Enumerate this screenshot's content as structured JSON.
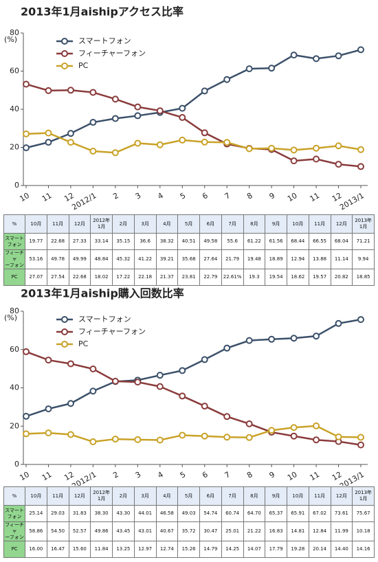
{
  "chart_data": [
    {
      "type": "line",
      "title": "2013年1月aishipアクセス比率",
      "y_label": "(%)",
      "categories": [
        "10",
        "11",
        "12",
        "2012/1",
        "2",
        "3",
        "4",
        "5",
        "6",
        "7",
        "8",
        "9",
        "10",
        "11",
        "12",
        "2013/1"
      ],
      "ylim": [
        0,
        80
      ],
      "yticks": [
        0,
        20,
        40,
        60,
        80
      ],
      "series": [
        {
          "name": "スマートフォン",
          "color": "#3b5069",
          "values": [
            19.77,
            22.68,
            27.33,
            33.14,
            35.15,
            36.6,
            38.32,
            40.51,
            49.58,
            55.6,
            61.22,
            61.56,
            68.44,
            66.55,
            68.04,
            71.21
          ]
        },
        {
          "name": "フィーチャーフォン",
          "color": "#8a3b3b",
          "values": [
            53.16,
            49.78,
            49.99,
            48.84,
            45.32,
            41.22,
            39.21,
            35.68,
            27.64,
            21.79,
            19.48,
            18.89,
            12.94,
            13.88,
            11.14,
            9.94
          ]
        },
        {
          "name": "PC",
          "color": "#c9a227",
          "values": [
            27.07,
            27.54,
            22.68,
            18.02,
            17.22,
            22.18,
            21.37,
            23.81,
            22.79,
            22.61,
            19.3,
            19.54,
            18.62,
            19.57,
            20.82,
            18.85
          ]
        }
      ]
    },
    {
      "type": "line",
      "title": "2013年1月aiship購入回数比率",
      "y_label": "(%)",
      "categories": [
        "10",
        "11",
        "12",
        "2012/1",
        "2",
        "3",
        "4",
        "5",
        "6",
        "7",
        "8",
        "9",
        "10",
        "11",
        "12",
        "2013/1"
      ],
      "ylim": [
        0,
        80
      ],
      "yticks": [
        0,
        20,
        40,
        60,
        80
      ],
      "series": [
        {
          "name": "スマートフォン",
          "color": "#3b5069",
          "values": [
            25.14,
            29.03,
            31.83,
            38.3,
            43.3,
            44.01,
            46.58,
            49.03,
            54.74,
            60.74,
            64.7,
            65.37,
            65.91,
            67.02,
            73.61,
            75.67
          ]
        },
        {
          "name": "フィーチャーフォン",
          "color": "#8a3b3b",
          "values": [
            58.86,
            54.5,
            52.57,
            49.86,
            43.45,
            43.01,
            40.67,
            35.72,
            30.47,
            25.01,
            21.22,
            16.83,
            14.81,
            12.84,
            11.99,
            10.18
          ]
        },
        {
          "name": "PC",
          "color": "#c9a227",
          "values": [
            16.0,
            16.47,
            15.6,
            11.84,
            13.25,
            12.97,
            12.74,
            15.26,
            14.79,
            14.25,
            14.07,
            17.79,
            19.28,
            20.14,
            14.4,
            14.16
          ]
        }
      ]
    }
  ],
  "tables": [
    {
      "header": [
        "%",
        "10月",
        "11月",
        "12月",
        "2012年\n1月",
        "2月",
        "3月",
        "4月",
        "5月",
        "6月",
        "7月",
        "8月",
        "9月",
        "10月",
        "11月",
        "12月",
        "2013年\n1月"
      ],
      "rows": [
        [
          "スマート\nフォン",
          "19.77",
          "22.68",
          "27.33",
          "33.14",
          "35.15",
          "36.6",
          "38.32",
          "40.51",
          "49.58",
          "55.6",
          "61.22",
          "61.56",
          "68.44",
          "66.55",
          "68.04",
          "71.21"
        ],
        [
          "フィーチャ\nーフォン",
          "53.16",
          "49.78",
          "49.99",
          "48.84",
          "45.32",
          "41.22",
          "39.21",
          "35.68",
          "27.64",
          "21.79",
          "19.48",
          "18.89",
          "12.94",
          "13.88",
          "11.14",
          "9.94"
        ],
        [
          "PC",
          "27.07",
          "27.54",
          "22.68",
          "18.02",
          "17.22",
          "22.18",
          "21.37",
          "23.81",
          "22.79",
          "22.61%",
          "19.3",
          "19.54",
          "18.62",
          "19.57",
          "20.82",
          "18.85"
        ]
      ]
    },
    {
      "header": [
        "%",
        "10月",
        "11月",
        "12月",
        "2012年\n1月",
        "2月",
        "3月",
        "4月",
        "5月",
        "6月",
        "7月",
        "8月",
        "9月",
        "10月",
        "11月",
        "12月",
        "2013年\n1月"
      ],
      "rows": [
        [
          "スマート\nフォン",
          "25.14",
          "29.03",
          "31.83",
          "38.30",
          "43.30",
          "44.01",
          "46.58",
          "49.03",
          "54.74",
          "60.74",
          "64.70",
          "65.37",
          "65.91",
          "67.02",
          "73.61",
          "75.67"
        ],
        [
          "フィーチャ\nーフォン",
          "58.86",
          "54.50",
          "52.57",
          "49.86",
          "43.45",
          "43.01",
          "40.67",
          "35.72",
          "30.47",
          "25.01",
          "21.22",
          "16.83",
          "14.81",
          "12.84",
          "11.99",
          "10.18"
        ],
        [
          "PC",
          "16.00",
          "16.47",
          "15.60",
          "11.84",
          "13.25",
          "12.97",
          "12.74",
          "15.26",
          "14.79",
          "14.25",
          "14.07",
          "17.79",
          "19.28",
          "20.14",
          "14.40",
          "14.16"
        ]
      ]
    }
  ]
}
